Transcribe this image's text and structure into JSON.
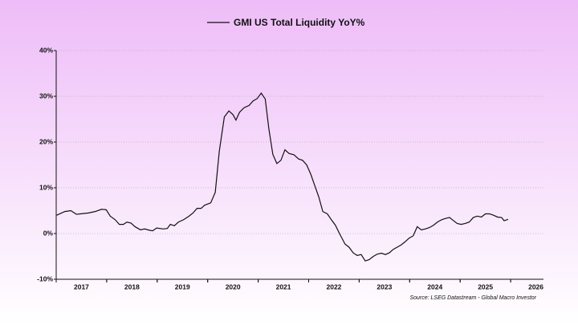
{
  "chart_data": {
    "type": "line",
    "x": [
      2017.01,
      2017.17,
      2017.29,
      2017.4,
      2017.48,
      2017.64,
      2017.77,
      2017.9,
      2017.99,
      2018.07,
      2018.17,
      2018.25,
      2018.33,
      2018.4,
      2018.48,
      2018.56,
      2018.67,
      2018.75,
      2018.85,
      2018.91,
      2018.99,
      2019.12,
      2019.2,
      2019.26,
      2019.34,
      2019.42,
      2019.52,
      2019.63,
      2019.71,
      2019.79,
      2019.87,
      2019.94,
      2020.06,
      2020.15,
      2020.23,
      2020.33,
      2020.42,
      2020.5,
      2020.56,
      2020.63,
      2020.72,
      2020.82,
      2020.9,
      2020.98,
      2021.06,
      2021.14,
      2021.21,
      2021.29,
      2021.37,
      2021.45,
      2021.53,
      2021.61,
      2021.71,
      2021.8,
      2021.88,
      2021.96,
      2022.04,
      2022.12,
      2022.2,
      2022.28,
      2022.37,
      2022.45,
      2022.53,
      2022.61,
      2022.72,
      2022.8,
      2022.88,
      2022.96,
      2023.04,
      2023.12,
      2023.2,
      2023.28,
      2023.36,
      2023.44,
      2023.52,
      2023.6,
      2023.67,
      2023.75,
      2023.83,
      2023.91,
      2023.99,
      2024.07,
      2024.15,
      2024.23,
      2024.31,
      2024.39,
      2024.47,
      2024.55,
      2024.63,
      2024.71,
      2024.79,
      2024.87,
      2024.94,
      2025.02,
      2025.1,
      2025.18,
      2025.26,
      2025.34,
      2025.42,
      2025.5,
      2025.58,
      2025.66,
      2025.74,
      2025.82,
      2025.87,
      2025.95
    ],
    "series": [
      {
        "name": "GMI US Total Liquidity YoY%",
        "color": "#111111",
        "values": [
          4,
          4.8,
          5,
          4.2,
          4.3,
          4.5,
          4.8,
          5.3,
          5.2,
          3.8,
          3,
          2,
          2,
          2.5,
          2.3,
          1.5,
          0.8,
          1,
          0.7,
          0.6,
          1.2,
          1,
          1.1,
          2,
          1.7,
          2.5,
          3,
          3.8,
          4.5,
          5.5,
          5.5,
          6.2,
          6.7,
          9,
          18,
          25.5,
          26.8,
          26,
          24.8,
          26.5,
          27.5,
          28,
          29,
          29.5,
          30.7,
          29.4,
          23,
          17.3,
          15.3,
          16,
          18.3,
          17.5,
          17.2,
          16.3,
          16,
          15,
          13,
          10.5,
          8,
          4.8,
          4.3,
          3,
          1.8,
          0,
          -2.3,
          -3,
          -4.2,
          -4.8,
          -4.6,
          -6,
          -5.7,
          -5,
          -4.5,
          -4.3,
          -4.6,
          -4.2,
          -3.5,
          -3,
          -2.5,
          -1.8,
          -1,
          -0.5,
          1.5,
          0.8,
          1,
          1.3,
          1.8,
          2.5,
          3,
          3.3,
          3.5,
          2.8,
          2.2,
          2,
          2.2,
          2.5,
          3.5,
          3.8,
          3.6,
          4.3,
          4.3,
          4,
          3.6,
          3.5,
          2.8,
          3.1
        ]
      }
    ],
    "xlim": [
      2017,
      2026.65
    ],
    "xticks": [
      {
        "value": 2017.5,
        "label": "2017"
      },
      {
        "value": 2018.5,
        "label": "2018"
      },
      {
        "value": 2019.5,
        "label": "2019"
      },
      {
        "value": 2020.5,
        "label": "2020"
      },
      {
        "value": 2021.5,
        "label": "2021"
      },
      {
        "value": 2022.5,
        "label": "2022"
      },
      {
        "value": 2023.5,
        "label": "2023"
      },
      {
        "value": 2024.5,
        "label": "2024"
      },
      {
        "value": 2025.5,
        "label": "2025"
      },
      {
        "value": 2026.5,
        "label": "2026"
      }
    ],
    "ylim": [
      -10,
      40
    ],
    "yticks": [
      {
        "value": -10,
        "label": "-10%"
      },
      {
        "value": 0,
        "label": "0%"
      },
      {
        "value": 10,
        "label": "10%"
      },
      {
        "value": 20,
        "label": "20%"
      },
      {
        "value": 30,
        "label": "30%"
      },
      {
        "value": 40,
        "label": "40%"
      }
    ],
    "grid": true,
    "source": "Source: LSEG Datastream - Global Macro Investor"
  }
}
